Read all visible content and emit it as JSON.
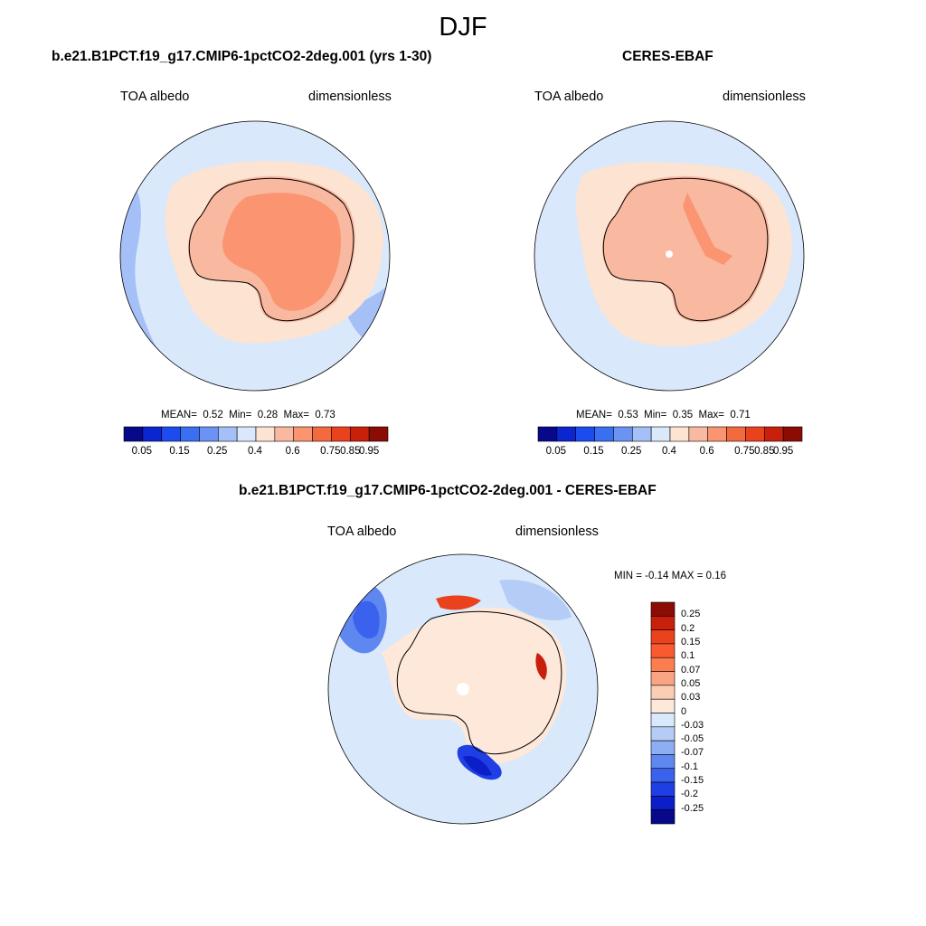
{
  "season": "DJF",
  "palette_abs": [
    "#08088a",
    "#0b26d0",
    "#1c4cf0",
    "#3a6ff2",
    "#6b93f4",
    "#a5bff7",
    "#d9e8fb",
    "#fde3d2",
    "#f9b8a0",
    "#fb9470",
    "#f4693e",
    "#e9421c",
    "#c8200b",
    "#8a0c05"
  ],
  "palette_diff": [
    "#8a0c05",
    "#c8200b",
    "#e9421c",
    "#fb5a30",
    "#fb7d50",
    "#f9a584",
    "#fbcdb2",
    "#fde8da",
    "#d9e8fb",
    "#b5ccf6",
    "#8eaef3",
    "#5f87f0",
    "#3a62ec",
    "#1f3ee4",
    "#0b1ec8",
    "#07088a"
  ],
  "panels": [
    {
      "title": "b.e21.B1PCT.f19_g17.CMIP6-1pctCO2-2deg.001 (yrs 1-30)",
      "var": "TOA albedo",
      "units": "dimensionless",
      "mean_label": "MEAN=",
      "mean": "0.52",
      "min_label": "Min=",
      "min": "0.28",
      "max_label": "Max=",
      "max": "0.73",
      "colorbar_labels": [
        "0.05",
        "0.15",
        "0.25",
        "0.4",
        "0.6",
        "0.75",
        "0.85",
        "0.95"
      ]
    },
    {
      "title": "CERES-EBAF",
      "var": "TOA albedo",
      "units": "dimensionless",
      "mean_label": "MEAN=",
      "mean": "0.53",
      "min_label": "Min=",
      "min": "0.35",
      "max_label": "Max=",
      "max": "0.71",
      "colorbar_labels": [
        "0.05",
        "0.15",
        "0.25",
        "0.4",
        "0.6",
        "0.75",
        "0.85",
        "0.95"
      ]
    }
  ],
  "diff": {
    "title": "b.e21.B1PCT.f19_g17.CMIP6-1pctCO2-2deg.001 - CERES-EBAF",
    "var": "TOA albedo",
    "units": "dimensionless",
    "minmax": "MIN =  -0.14 MAX =   0.16",
    "colorbar_labels": [
      "0.25",
      "0.2",
      "0.15",
      "0.1",
      "0.07",
      "0.05",
      "0.03",
      "0",
      "-0.03",
      "-0.05",
      "-0.07",
      "-0.1",
      "-0.15",
      "-0.2",
      "-0.25"
    ]
  }
}
